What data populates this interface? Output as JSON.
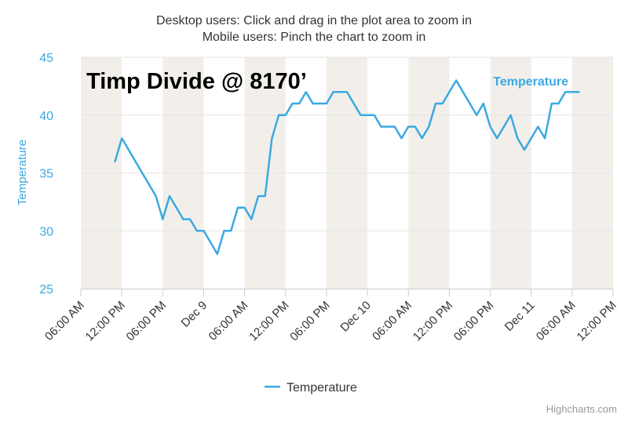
{
  "subtitle": {
    "line1": "Desktop users: Click and drag in the plot area to zoom in",
    "line2": "Mobile users: Pinch the chart to zoom in"
  },
  "credits": "Highcharts.com",
  "legend": {
    "label": "Temperature"
  },
  "colors": {
    "series": "#3aa9e2",
    "band": "#f2efea",
    "grid": "#e6e6e6",
    "axis_text": "#333333",
    "y_axis": "#3aa9e2"
  },
  "chart_data": {
    "type": "line",
    "title": "Timp Divide @ 8170’",
    "ylabel": "Temperature",
    "xlabel": "",
    "ylim": [
      25,
      45
    ],
    "y_ticks": [
      25,
      30,
      35,
      40,
      45
    ],
    "x_range_hours": [
      0,
      78
    ],
    "x_unit": "hours since Dec 8 06:00 AM",
    "x_ticks": [
      {
        "h": 0,
        "label": "06:00 AM"
      },
      {
        "h": 6,
        "label": "12:00 PM"
      },
      {
        "h": 12,
        "label": "06:00 PM"
      },
      {
        "h": 18,
        "label": "Dec 9"
      },
      {
        "h": 24,
        "label": "06:00 AM"
      },
      {
        "h": 30,
        "label": "12:00 PM"
      },
      {
        "h": 36,
        "label": "06:00 PM"
      },
      {
        "h": 42,
        "label": "Dec 10"
      },
      {
        "h": 48,
        "label": "06:00 AM"
      },
      {
        "h": 54,
        "label": "12:00 PM"
      },
      {
        "h": 60,
        "label": "06:00 PM"
      },
      {
        "h": 66,
        "label": "Dec 11"
      },
      {
        "h": 72,
        "label": "06:00 AM"
      },
      {
        "h": 78,
        "label": "12:00 PM"
      }
    ],
    "bands": [
      [
        0,
        6
      ],
      [
        12,
        18
      ],
      [
        24,
        30
      ],
      [
        36,
        42
      ],
      [
        48,
        54
      ],
      [
        60,
        66
      ],
      [
        72,
        78
      ]
    ],
    "series": [
      {
        "name": "Temperature",
        "label": "Temperature",
        "x": [
          5,
          6,
          8,
          9,
          10,
          11,
          12,
          13,
          14,
          15,
          16,
          17,
          18,
          19,
          20,
          21,
          22,
          23,
          24,
          25,
          26,
          27,
          28,
          29,
          30,
          31,
          32,
          33,
          34,
          35,
          36,
          37,
          38,
          39,
          40,
          41,
          42,
          43,
          44,
          45,
          46,
          47,
          48,
          49,
          50,
          51,
          52,
          53,
          54,
          55,
          56,
          57,
          58,
          59,
          60,
          61,
          62,
          63,
          64,
          65,
          66,
          67,
          68,
          69,
          70,
          71,
          72,
          73
        ],
        "values": [
          36,
          38,
          36,
          35,
          34,
          33,
          31,
          33,
          32,
          31,
          31,
          30,
          30,
          29,
          28,
          30,
          30,
          32,
          32,
          31,
          33,
          33,
          38,
          40,
          40,
          41,
          41,
          42,
          41,
          41,
          41,
          42,
          42,
          42,
          41,
          40,
          40,
          40,
          39,
          39,
          39,
          38,
          39,
          39,
          38,
          39,
          41,
          41,
          42,
          43,
          42,
          41,
          40,
          41,
          39,
          38,
          39,
          40,
          38,
          37,
          38,
          39,
          38,
          41,
          41,
          42,
          42,
          42
        ]
      }
    ]
  }
}
